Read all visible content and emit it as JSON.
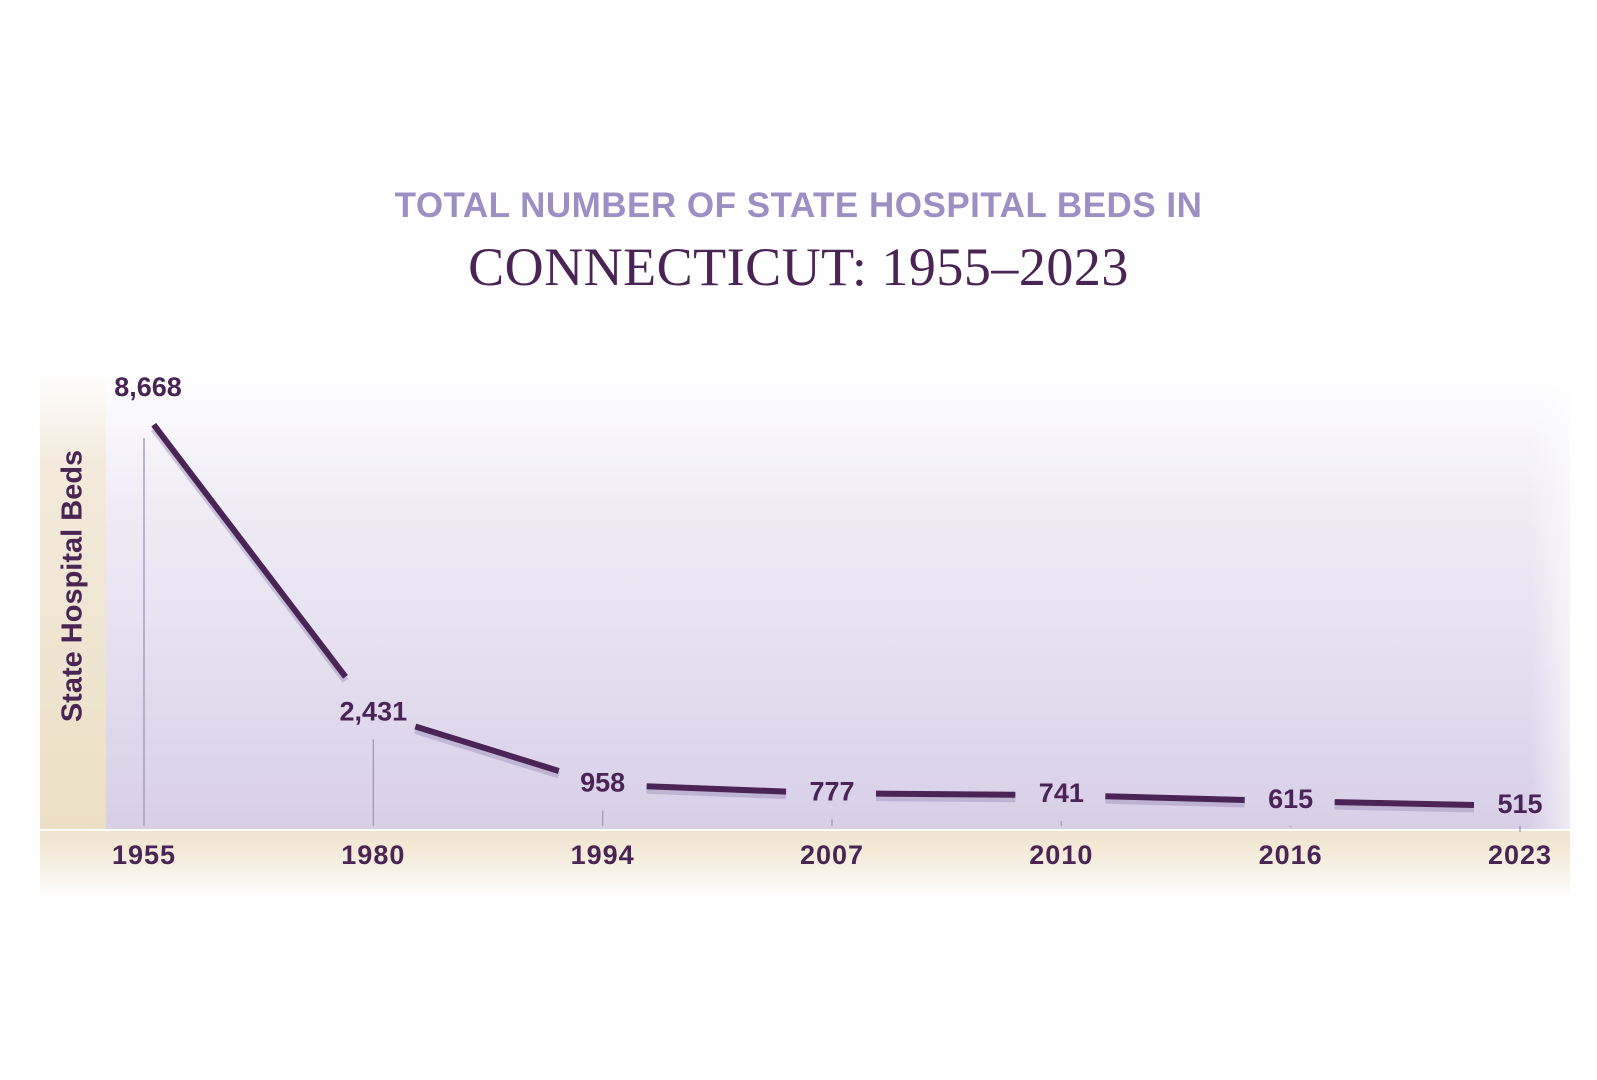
{
  "title": {
    "line1": "TOTAL NUMBER OF STATE HOSPITAL BEDS IN",
    "line2": "CONNECTICUT: 1955–2023"
  },
  "colors": {
    "title_accent": "#9b8fc4",
    "title_main": "#4a2455",
    "line": "#4a2455",
    "plot_bg_top": "#ffffff",
    "plot_bg_bottom": "#d9d0e8",
    "axis_band": "#f1e7d4"
  },
  "chart_data": {
    "type": "line",
    "title": "TOTAL NUMBER OF STATE HOSPITAL BEDS IN CONNECTICUT: 1955–2023",
    "xlabel": "",
    "ylabel": "State Hospital Beds",
    "categories": [
      "1955",
      "1980",
      "1994",
      "2007",
      "2010",
      "2016",
      "2023"
    ],
    "values": [
      8668,
      2431,
      958,
      777,
      741,
      615,
      515
    ],
    "data_labels": [
      "8,668",
      "2,431",
      "958",
      "777",
      "741",
      "615",
      "515"
    ],
    "x_spacing": "categorical",
    "grid": false,
    "legend": "none"
  }
}
